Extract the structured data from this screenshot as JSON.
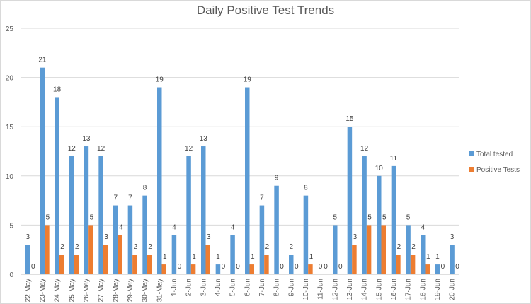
{
  "chart_data": {
    "type": "bar",
    "title": "Daily Positive Test Trends",
    "xlabel": "",
    "ylabel": "",
    "ylim": [
      0,
      25
    ],
    "yticks": [
      0,
      5,
      10,
      15,
      20,
      25
    ],
    "grid": true,
    "legend_position": "right",
    "categories": [
      "22-May",
      "23-May",
      "24-May",
      "25-May",
      "26-May",
      "27-May",
      "28-May",
      "29-May",
      "30-May",
      "31-May",
      "1-Jun",
      "2-Jun",
      "3-Jun",
      "4-Jun",
      "5-Jun",
      "6-Jun",
      "7-Jun",
      "8-Jun",
      "9-Jun",
      "10-Jun",
      "11-Jun",
      "12-Jun",
      "13-Jun",
      "14-Jun",
      "15-Jun",
      "16-Jun",
      "17-Jun",
      "18-Jun",
      "19-Jun",
      "20-Jun"
    ],
    "series": [
      {
        "name": "Total tested",
        "color": "#5b9bd5",
        "values": [
          3,
          21,
          18,
          12,
          13,
          12,
          7,
          7,
          8,
          19,
          4,
          12,
          13,
          1,
          4,
          19,
          7,
          9,
          2,
          8,
          0,
          5,
          15,
          12,
          10,
          11,
          5,
          4,
          1,
          3
        ]
      },
      {
        "name": "Positive Tests",
        "color": "#ed7d31",
        "values": [
          0,
          5,
          2,
          2,
          5,
          3,
          4,
          2,
          2,
          1,
          0,
          1,
          3,
          0,
          0,
          1,
          2,
          0,
          0,
          1,
          0,
          0,
          3,
          5,
          5,
          2,
          2,
          1,
          0,
          0
        ]
      }
    ]
  }
}
